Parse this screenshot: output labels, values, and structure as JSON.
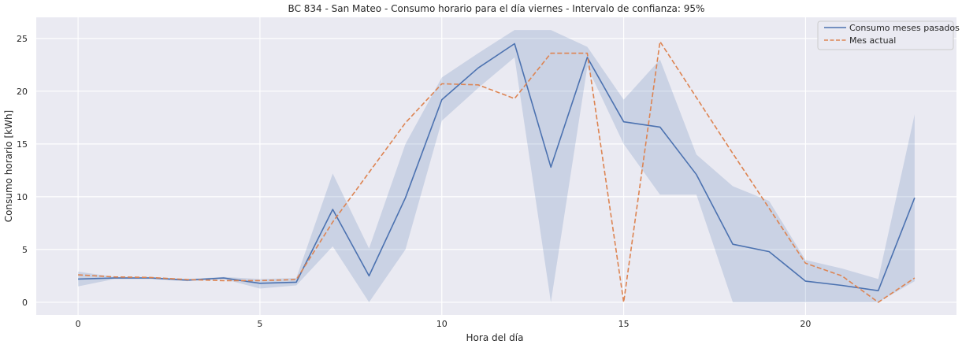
{
  "chart_data": {
    "type": "line",
    "title": "BC 834 - San Mateo - Consumo horario para el día viernes - Intervalo de confianza: 95%",
    "xlabel": "Hora del día",
    "ylabel": "Consumo horario [kWh]",
    "xlim": [
      -1.15,
      24.15
    ],
    "ylim": [
      -1.2,
      27.0
    ],
    "xticks": [
      0,
      5,
      10,
      15,
      20
    ],
    "yticks": [
      0,
      5,
      10,
      15,
      20,
      25
    ],
    "grid": true,
    "legend_position": "top-right",
    "x": [
      0,
      1,
      2,
      3,
      4,
      5,
      6,
      7,
      8,
      9,
      10,
      11,
      12,
      13,
      14,
      15,
      16,
      17,
      18,
      19,
      20,
      21,
      22,
      23
    ],
    "series": [
      {
        "name": "Consumo meses pasados",
        "color": "#4c72b0",
        "style": "solid",
        "values": [
          2.2,
          2.3,
          2.3,
          2.1,
          2.3,
          1.8,
          1.9,
          8.8,
          2.5,
          9.9,
          19.2,
          22.2,
          24.5,
          12.8,
          23.2,
          17.1,
          16.6,
          12.1,
          5.5,
          4.8,
          2.0,
          1.6,
          1.1,
          9.9
        ],
        "ci_lower": [
          1.5,
          2.2,
          2.2,
          2.0,
          2.2,
          1.3,
          1.6,
          5.3,
          0.0,
          5.0,
          17.2,
          20.3,
          23.2,
          0.0,
          22.3,
          15.0,
          10.2,
          10.2,
          0.0,
          0.0,
          0.0,
          0.0,
          0.0,
          2.0
        ],
        "ci_upper": [
          2.9,
          2.4,
          2.4,
          2.2,
          2.4,
          2.2,
          2.3,
          12.2,
          5.1,
          15.0,
          21.3,
          23.6,
          25.8,
          25.8,
          24.2,
          19.2,
          23.0,
          14.0,
          11.0,
          9.6,
          4.0,
          3.2,
          2.2,
          17.8
        ],
        "ci_color": "#4c72b0"
      },
      {
        "name": "Mes actual",
        "color": "#dd8452",
        "style": "dashed",
        "values": [
          2.6,
          2.4,
          2.35,
          2.15,
          2.05,
          2.05,
          2.15,
          7.6,
          12.3,
          17.0,
          20.7,
          20.6,
          19.3,
          23.6,
          23.6,
          0.0,
          24.7,
          19.4,
          14.1,
          8.9,
          3.7,
          2.5,
          0.0,
          2.3
        ]
      }
    ]
  }
}
